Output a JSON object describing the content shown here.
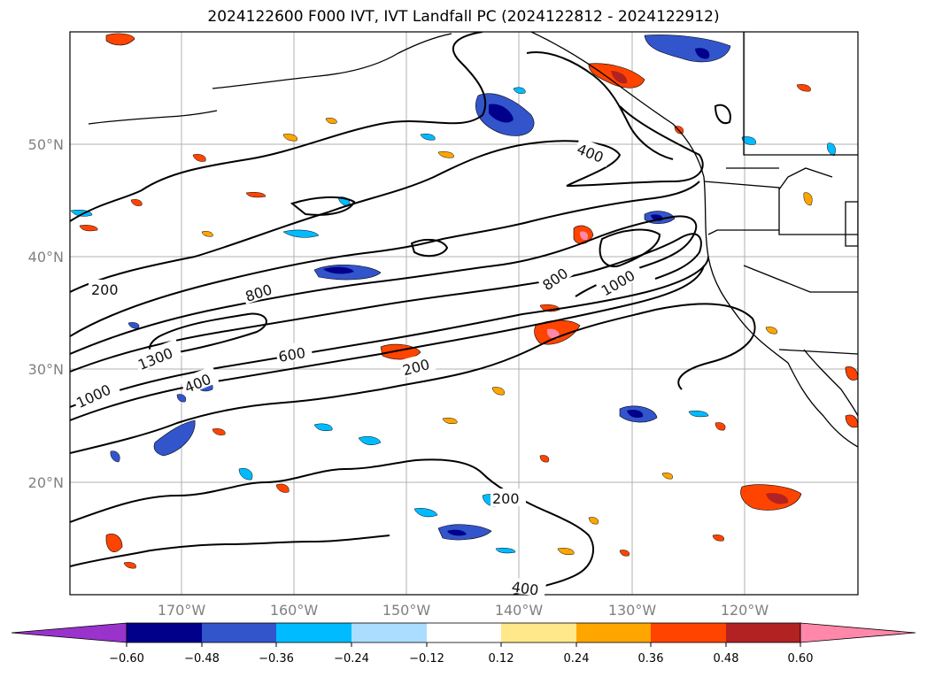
{
  "title": "2024122600 F000 IVT, IVT Landfall PC (2024122812 - 2024122912)",
  "map": {
    "lat_labels": [
      "50°N",
      "40°N",
      "30°N",
      "20°N"
    ],
    "lon_labels": [
      "170°W",
      "160°W",
      "150°W",
      "140°W",
      "130°W",
      "120°W"
    ],
    "contour_labels": [
      "200",
      "800",
      "1300",
      "1000",
      "400",
      "600",
      "200",
      "400",
      "800",
      "1000",
      "200",
      "400"
    ],
    "grid": true
  },
  "colorbar": {
    "extend": "both",
    "tick_labels": [
      "−0.60",
      "−0.48",
      "−0.36",
      "−0.24",
      "−0.12",
      "0.12",
      "0.24",
      "0.36",
      "0.48",
      "0.60"
    ],
    "colors": [
      "#9933cc",
      "#00008b",
      "#3355cc",
      "#00bbff",
      "#aaddff",
      "#ffffff",
      "#ffe88a",
      "#ffa500",
      "#ff4400",
      "#b22222",
      "#ff88aa"
    ]
  }
}
